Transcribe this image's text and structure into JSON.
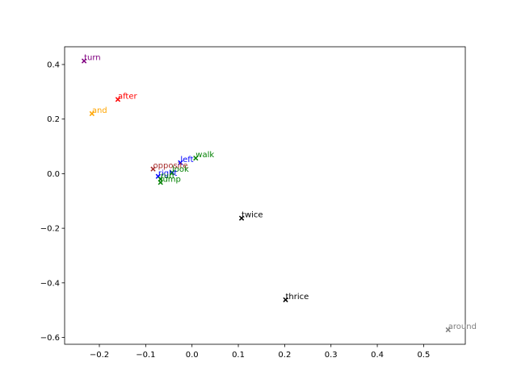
{
  "chart_data": {
    "type": "scatter",
    "marker": "x",
    "xlim": [
      -0.275,
      0.59
    ],
    "ylim": [
      -0.625,
      0.465
    ],
    "xticks": [
      -0.2,
      -0.1,
      0.0,
      0.1,
      0.2,
      0.3,
      0.4,
      0.5
    ],
    "xtick_labels": [
      "−0.2",
      "−0.1",
      "0.0",
      "0.1",
      "0.2",
      "0.3",
      "0.4",
      "0.5"
    ],
    "yticks": [
      0.4,
      0.2,
      0.0,
      -0.2,
      -0.4,
      -0.6
    ],
    "ytick_labels": [
      "0.4",
      "0.2",
      "0.0",
      "−0.2",
      "−0.4",
      "−0.6"
    ],
    "grid": false,
    "points": [
      {
        "label": "turn",
        "x": -0.233,
        "y": 0.413,
        "color": "#800080"
      },
      {
        "label": "after",
        "x": -0.16,
        "y": 0.272,
        "color": "#ff0000"
      },
      {
        "label": "and",
        "x": -0.216,
        "y": 0.22,
        "color": "#ffa500"
      },
      {
        "label": "walk",
        "x": 0.008,
        "y": 0.057,
        "color": "#008000"
      },
      {
        "label": "left",
        "x": -0.025,
        "y": 0.04,
        "color": "#0000ff"
      },
      {
        "label": "opposite",
        "x": -0.084,
        "y": 0.017,
        "color": "#a52a2a"
      },
      {
        "label": "look",
        "x": -0.043,
        "y": 0.004,
        "color": "#008000"
      },
      {
        "label": "right",
        "x": -0.073,
        "y": -0.01,
        "color": "#0000ff"
      },
      {
        "label": "run",
        "x": -0.068,
        "y": -0.02,
        "color": "#008000"
      },
      {
        "label": "jump",
        "x": -0.068,
        "y": -0.032,
        "color": "#008000"
      },
      {
        "label": "twice",
        "x": 0.107,
        "y": -0.163,
        "color": "#000000"
      },
      {
        "label": "thrice",
        "x": 0.202,
        "y": -0.462,
        "color": "#000000"
      },
      {
        "label": "around",
        "x": 0.553,
        "y": -0.572,
        "color": "#808080"
      }
    ]
  }
}
